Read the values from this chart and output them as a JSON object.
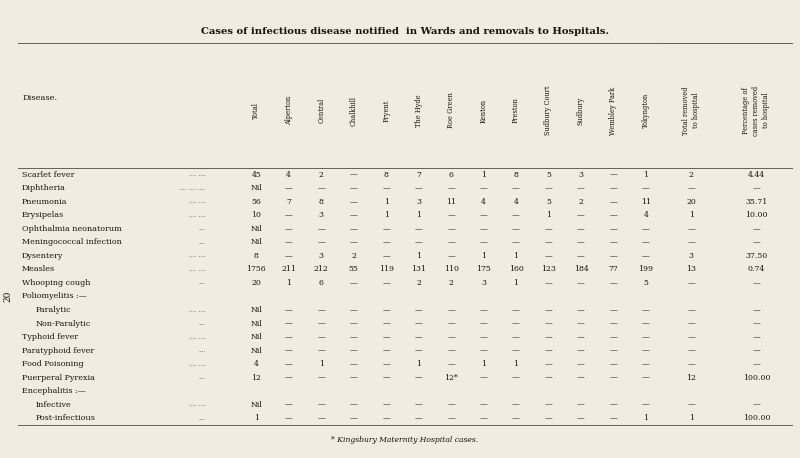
{
  "title": "Cases of infectious disease notified  in Wards and removals to Hospitals.",
  "footnote": "* Kingsbury Maternity Hospital cases.",
  "page_number": "20",
  "col_headers": [
    "Total",
    "Alperton",
    "Central",
    "Chalkhill",
    "Fryent",
    "The Hyde",
    "Roe Green",
    "Kenton",
    "Preston",
    "Sudbury Court",
    "Sudbury",
    "Wembley Park",
    "Tokyngton",
    "Total removed\nto hospital",
    "Percentage of\ncases removed\nto hospital"
  ],
  "rows": [
    {
      "disease": "Scarlet fever",
      "indent": 0,
      "section": false,
      "dots": ".... ....",
      "values": [
        "45",
        "4",
        "2",
        "—",
        "8",
        "7",
        "6",
        "1",
        "8",
        "5",
        "3",
        "—",
        "1",
        "2",
        "4.44"
      ]
    },
    {
      "disease": "Diphtheria",
      "indent": 0,
      "section": false,
      "dots": ".... .... ....",
      "values": [
        "Nil",
        "—",
        "—",
        "—",
        "—",
        "—",
        "—",
        "—",
        "—",
        "—",
        "—",
        "—",
        "—",
        "—",
        "—"
      ]
    },
    {
      "disease": "Pneumonia",
      "indent": 0,
      "section": false,
      "dots": ".... ....",
      "values": [
        "56",
        "7",
        "8",
        "—",
        "1",
        "3",
        "11",
        "4",
        "4",
        "5",
        "2",
        "—",
        "11",
        "20",
        "35.71"
      ]
    },
    {
      "disease": "Erysipelas",
      "indent": 0,
      "section": false,
      "dots": ".... ....",
      "values": [
        "10",
        "—",
        "3",
        "—",
        "1",
        "1",
        "—",
        "—",
        "—",
        "1",
        "—",
        "—",
        "4",
        "1",
        "10.00"
      ]
    },
    {
      "disease": "Ophthalmia neonatorum",
      "indent": 0,
      "section": false,
      "dots": "....",
      "values": [
        "Nil",
        "—",
        "—",
        "—",
        "—",
        "—",
        "—",
        "—",
        "—",
        "—",
        "—",
        "—",
        "—",
        "—",
        "—"
      ]
    },
    {
      "disease": "Meningococcal infection",
      "indent": 0,
      "section": false,
      "dots": "....",
      "values": [
        "Nil",
        "—",
        "—",
        "—",
        "—",
        "—",
        "—",
        "—",
        "—",
        "—",
        "—",
        "—",
        "—",
        "—",
        "—"
      ]
    },
    {
      "disease": "Dysentery",
      "indent": 0,
      "section": false,
      "dots": ".... ....",
      "values": [
        "8",
        "—",
        "3",
        "2",
        "—",
        "1",
        "—",
        "1",
        "1",
        "—",
        "—",
        "—",
        "—",
        "3",
        "37.50"
      ]
    },
    {
      "disease": "Measles",
      "indent": 0,
      "section": false,
      "dots": ".... ....",
      "values": [
        "1756",
        "211",
        "212",
        "55",
        "119",
        "131",
        "110",
        "175",
        "160",
        "123",
        "184",
        "77",
        "199",
        "13",
        "0.74"
      ]
    },
    {
      "disease": "Whooping cough",
      "indent": 0,
      "section": false,
      "dots": "....",
      "values": [
        "20",
        "1",
        "6",
        "—",
        "—",
        "2",
        "2",
        "3",
        "1",
        "—",
        "—",
        "—",
        "5",
        "—",
        "—"
      ]
    },
    {
      "disease": "Poliomyelitis :—",
      "indent": 0,
      "section": true,
      "dots": "",
      "values": [
        "",
        "",
        "",
        "",
        "",
        "",
        "",
        "",
        "",
        "",
        "",
        "",
        "",
        "",
        ""
      ]
    },
    {
      "disease": "Paralytic",
      "indent": 1,
      "section": false,
      "dots": ".... ....",
      "values": [
        "Nil",
        "—",
        "—",
        "—",
        "—",
        "—",
        "—",
        "—",
        "—",
        "—",
        "—",
        "—",
        "—",
        "—",
        "—"
      ]
    },
    {
      "disease": "Non-Paralytic",
      "indent": 1,
      "section": false,
      "dots": "....",
      "values": [
        "Nil",
        "—",
        "—",
        "—",
        "—",
        "—",
        "—",
        "—",
        "—",
        "—",
        "—",
        "—",
        "—",
        "—",
        "—"
      ]
    },
    {
      "disease": "Typhoid fever",
      "indent": 0,
      "section": false,
      "dots": ".... ....",
      "values": [
        "Nil",
        "—",
        "—",
        "—",
        "—",
        "—",
        "—",
        "—",
        "—",
        "—",
        "—",
        "—",
        "—",
        "—",
        "—"
      ]
    },
    {
      "disease": "Paratyphoid fever",
      "indent": 0,
      "section": false,
      "dots": "....",
      "values": [
        "Nil",
        "—",
        "—",
        "—",
        "—",
        "—",
        "—",
        "—",
        "—",
        "—",
        "—",
        "—",
        "—",
        "—",
        "—"
      ]
    },
    {
      "disease": "Food Poisoning",
      "indent": 0,
      "section": false,
      "dots": ".... ....",
      "values": [
        "4",
        "—",
        "1",
        "—",
        "—",
        "1",
        "—",
        "1",
        "1",
        "—",
        "—",
        "—",
        "—",
        "—",
        "—"
      ]
    },
    {
      "disease": "Puerperal Pyrexia",
      "indent": 0,
      "section": false,
      "dots": "....",
      "values": [
        "12",
        "—",
        "—",
        "—",
        "—",
        "—",
        "12*",
        "—",
        "—",
        "—",
        "—",
        "—",
        "—",
        "12",
        "100.00"
      ]
    },
    {
      "disease": "Encephalitis :—",
      "indent": 0,
      "section": true,
      "dots": "",
      "values": [
        "",
        "",
        "",
        "",
        "",
        "",
        "",
        "",
        "",
        "",
        "",
        "",
        "",
        "",
        ""
      ]
    },
    {
      "disease": "Infective",
      "indent": 1,
      "section": false,
      "dots": ".... ....",
      "values": [
        "Nil",
        "—",
        "—",
        "—",
        "—",
        "—",
        "—",
        "—",
        "—",
        "—",
        "—",
        "—",
        "—",
        "—",
        "—"
      ]
    },
    {
      "disease": "Post-infectious",
      "indent": 1,
      "section": false,
      "dots": "....",
      "values": [
        "1",
        "—",
        "—",
        "—",
        "—",
        "—",
        "—",
        "—",
        "—",
        "—",
        "—",
        "—",
        "1",
        "1",
        "100.00"
      ]
    }
  ],
  "bg_color": "#f0ece2",
  "text_color": "#1a1408",
  "line_color": "#6a6050"
}
